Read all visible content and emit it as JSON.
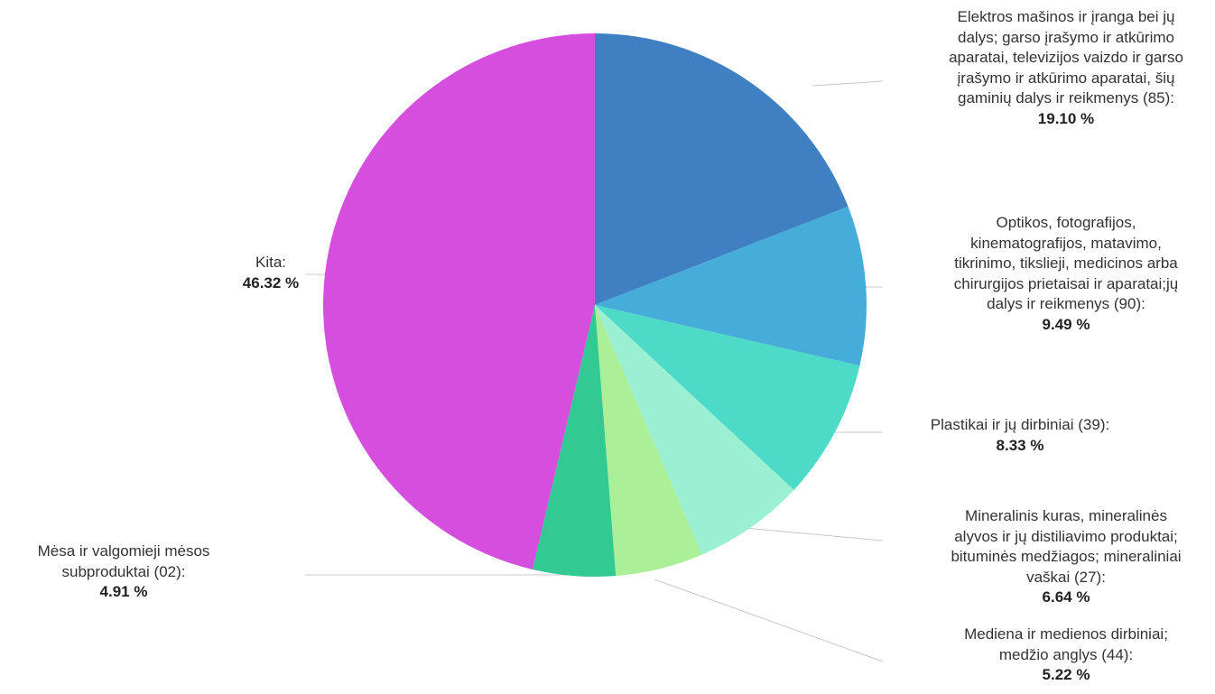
{
  "chart_data": {
    "type": "pie",
    "slices": [
      {
        "name_lines": [
          "Elektros mašinos ir įranga bei jų",
          "dalys; garso įrašymo ir atkūrimo",
          "aparatai, televizijos vaizdo ir garso",
          "įrašymo ir atkūrimo aparatai, šių",
          "gaminių dalys ir reikmenys (85):"
        ],
        "pct_label": "19.10 %",
        "value": 19.1,
        "color": "#3f80c2"
      },
      {
        "name_lines": [
          "Optikos, fotografijos,",
          "kinematografijos, matavimo,",
          "tikrinimo, tiksliejі, medicinos arba",
          "chirurgijos prietaisai ir aparatai;jų",
          "dalys ir reikmenys (90):"
        ],
        "pct_label": "9.49 %",
        "value": 9.49,
        "color": "#46acd9"
      },
      {
        "name_lines": [
          "Plastikai ir jų dirbiniai (39):"
        ],
        "pct_label": "8.33 %",
        "value": 8.33,
        "color": "#4ddbc8"
      },
      {
        "name_lines": [
          "Mineralinis kuras, mineralinės",
          "alyvos ir jų distiliavimo produktai;",
          "bituminės medžiagos; mineraliniai",
          "vaškai (27):"
        ],
        "pct_label": "6.64 %",
        "value": 6.64,
        "color": "#9bf0d3"
      },
      {
        "name_lines": [
          "Mediena ir medienos dirbiniai;",
          "medžio anglys (44):"
        ],
        "pct_label": "5.22 %",
        "value": 5.22,
        "color": "#abef98"
      },
      {
        "name_lines": [
          "Mėsa ir valgomieji mėsos",
          "subproduktai (02):"
        ],
        "pct_label": "4.91 %",
        "value": 4.91,
        "color": "#33c992"
      },
      {
        "name_lines": [
          "Kita:"
        ],
        "pct_label": "46.32 %",
        "value": 46.32,
        "color": "#d54ede"
      }
    ]
  },
  "colors": {
    "leader_line": "#c8c8c8",
    "background": "#ffffff"
  }
}
